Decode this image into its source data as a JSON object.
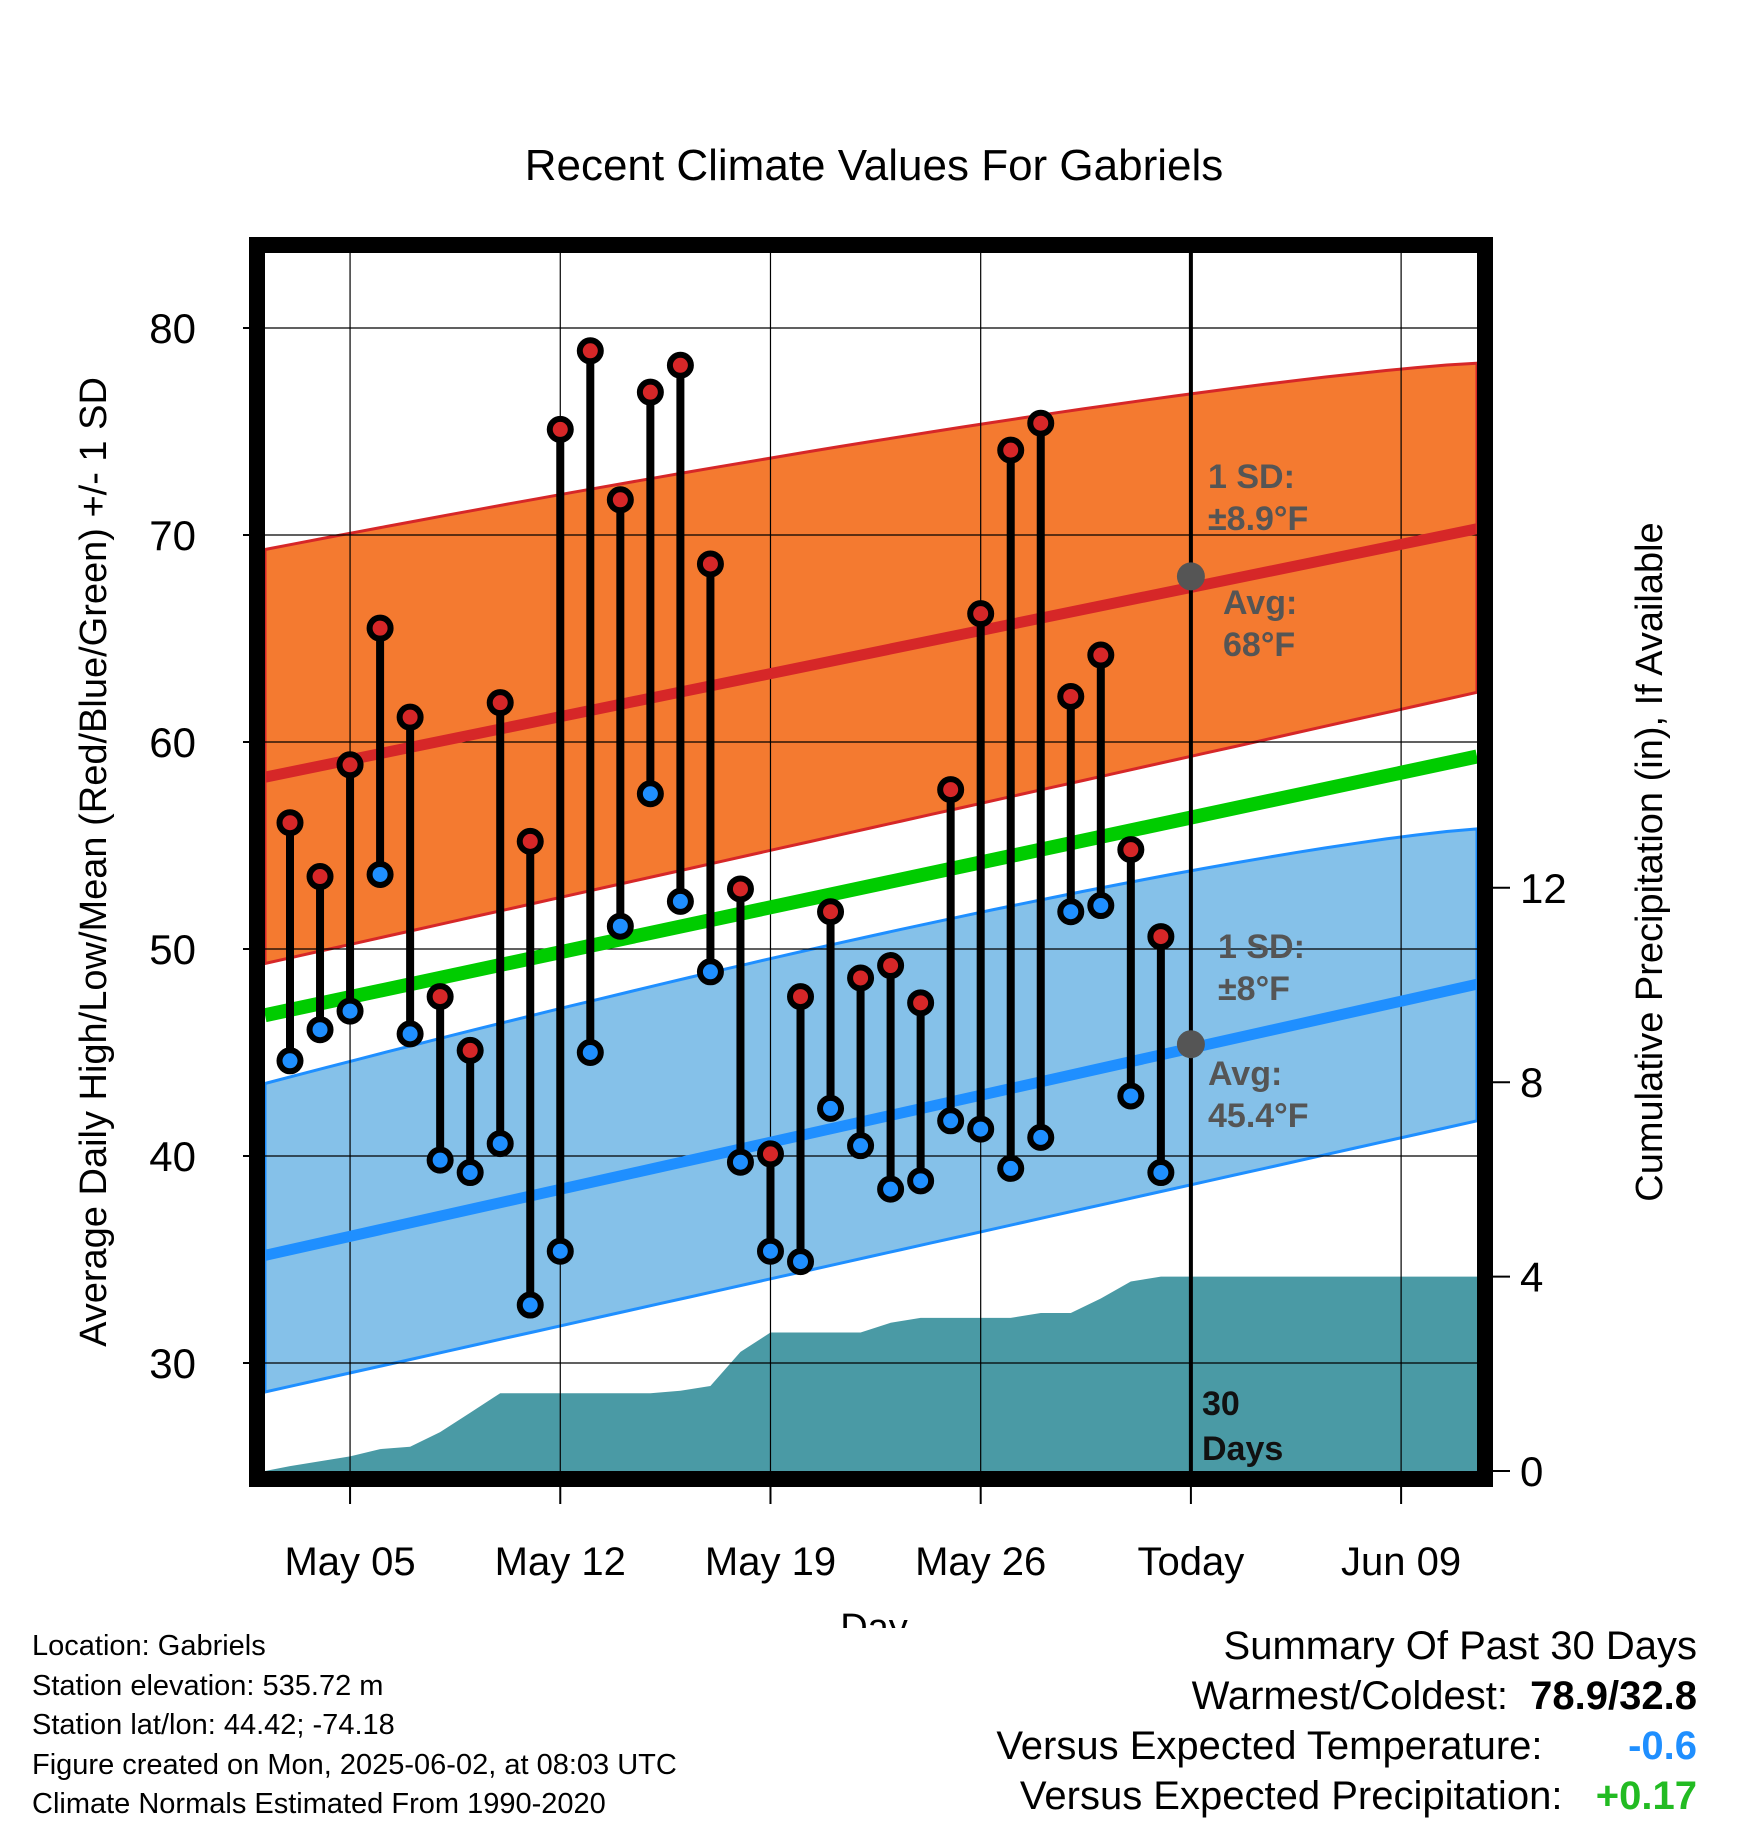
{
  "title": "Recent Climate Values For Gabriels",
  "chart_data": {
    "type": "line",
    "title": "Recent Climate Values For Gabriels",
    "xlabel": "Day",
    "ylabel": "Average Daily High/Low/Mean (Red/Blue/Green) +/- 1 SD",
    "y2label": "Cumulative Precipitation (in), If Available",
    "x_ticks": [
      "May 05",
      "May 12",
      "May 19",
      "May 26",
      "Today",
      "Jun 09"
    ],
    "ylim": [
      25,
      84
    ],
    "y_ticks": [
      30,
      40,
      50,
      60,
      70,
      80
    ],
    "y2lim": [
      0,
      24
    ],
    "y2_ticks": [
      0,
      4,
      8,
      12
    ],
    "grid": true,
    "colors": {
      "high": "#d62728",
      "low": "#1f8fff",
      "mean": "#00cc00",
      "high_band": "#f47a30",
      "low_band": "#85c1e9",
      "precip": "#4a9aa5"
    },
    "days": [
      "May 03",
      "May 04",
      "May 05",
      "May 06",
      "May 07",
      "May 08",
      "May 09",
      "May 10",
      "May 11",
      "May 12",
      "May 13",
      "May 14",
      "May 15",
      "May 16",
      "May 17",
      "May 18",
      "May 19",
      "May 20",
      "May 21",
      "May 22",
      "May 23",
      "May 24",
      "May 25",
      "May 26",
      "May 27",
      "May 28",
      "May 29",
      "May 30",
      "May 31",
      "Jun 01"
    ],
    "series": [
      {
        "name": "High",
        "values": [
          56.1,
          53.5,
          58.9,
          65.5,
          61.2,
          47.7,
          45.1,
          61.9,
          55.2,
          75.1,
          78.9,
          71.7,
          76.9,
          78.2,
          68.6,
          52.9,
          40.1,
          47.7,
          51.8,
          48.6,
          49.2,
          47.4,
          57.7,
          66.2,
          74.1,
          75.4,
          62.2,
          64.2,
          54.8,
          50.6
        ]
      },
      {
        "name": "Low",
        "values": [
          44.6,
          46.1,
          47.0,
          53.6,
          45.9,
          39.8,
          39.2,
          40.6,
          32.8,
          35.4,
          45.0,
          51.1,
          57.5,
          52.3,
          48.9,
          39.7,
          35.4,
          34.9,
          42.3,
          40.5,
          38.4,
          38.8,
          41.7,
          41.3,
          39.4,
          40.9,
          51.8,
          52.1,
          42.9,
          39.2
        ]
      },
      {
        "name": "Normal High",
        "values_start_end": [
          58.3,
          70.3
        ]
      },
      {
        "name": "Normal High +/- 1 SD",
        "values_start_end": [
          [
            49.3,
            69.3
          ],
          [
            62.4,
            78.3
          ]
        ]
      },
      {
        "name": "Normal Mean",
        "values_start_end": [
          46.8,
          59.3
        ]
      },
      {
        "name": "Normal Low",
        "values_start_end": [
          35.2,
          48.3
        ]
      },
      {
        "name": "Normal Low +/- 1 SD",
        "values_start_end": [
          [
            28.6,
            43.5
          ],
          [
            41.7,
            55.8
          ]
        ]
      },
      {
        "name": "Cumulative Precipitation",
        "values": [
          0.1,
          0.2,
          0.3,
          0.45,
          0.5,
          0.8,
          1.2,
          1.6,
          1.6,
          1.6,
          1.6,
          1.6,
          1.6,
          1.65,
          1.75,
          2.45,
          2.85,
          2.85,
          2.85,
          2.85,
          3.05,
          3.15,
          3.15,
          3.15,
          3.15,
          3.25,
          3.25,
          3.55,
          3.9,
          4.0
        ]
      }
    ],
    "annotations": {
      "high_sd": [
        "1 SD:",
        "±8.9°F"
      ],
      "high_avg": [
        "Avg:",
        "68°F"
      ],
      "low_sd": [
        "1 SD:",
        "±8°F"
      ],
      "low_avg": [
        "Avg:",
        "45.4°F"
      ],
      "window": [
        "30",
        "Days"
      ],
      "today_avg_high": 68,
      "today_avg_low": 45.4
    }
  },
  "footer": {
    "location": "Location: Gabriels",
    "elevation": "Station elevation: 535.72 m",
    "latlon": "Station lat/lon: 44.42; -74.18",
    "created": "Figure created on Mon, 2025-06-02, at 08:03 UTC",
    "normals": "Climate Normals Estimated From 1990-2020"
  },
  "summary": {
    "heading": "Summary Of Past 30 Days",
    "warm_cold_label": "Warmest/Coldest:",
    "warm_cold_value": "78.9/32.8",
    "temp_label": "Versus Expected Temperature:",
    "temp_value": "-0.6",
    "temp_color": "#1f8fff",
    "precip_label": "Versus Expected Precipitation:",
    "precip_value": "+0.17",
    "precip_color": "#22bb22"
  }
}
